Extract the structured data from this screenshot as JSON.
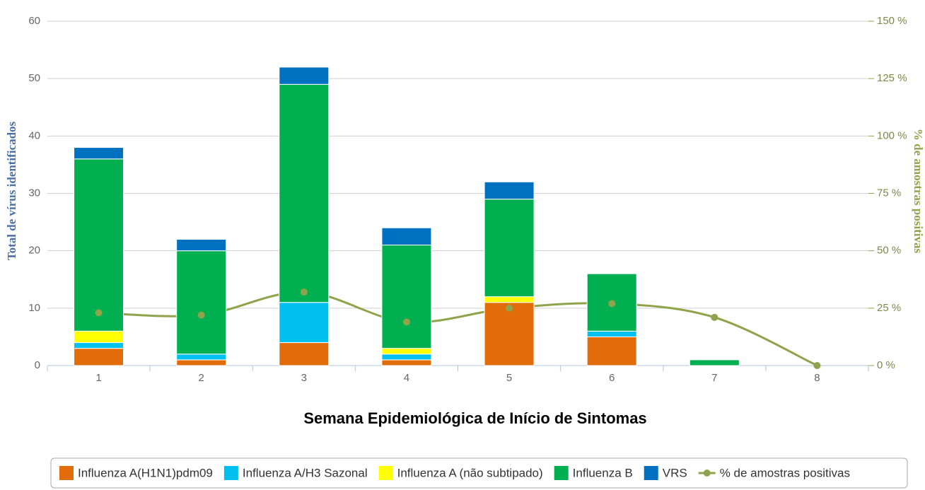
{
  "chart_data": {
    "type": "bar",
    "stacked": true,
    "x_label": "Semana Epidemiológica de Início de Sintomas",
    "y_label": "Total de vírus identificados",
    "y2_label": "% de amostras positivas",
    "categories": [
      "1",
      "2",
      "3",
      "4",
      "5",
      "6",
      "7",
      "8"
    ],
    "series": [
      {
        "name": "Influenza A(H1N1)pdm09",
        "color": "#e36c0a",
        "values": [
          3,
          1,
          4,
          1,
          11,
          5,
          0,
          0
        ]
      },
      {
        "name": "Influenza A/H3 Sazonal",
        "color": "#00c0f0",
        "values": [
          1,
          1,
          7,
          1,
          0,
          1,
          0,
          0
        ]
      },
      {
        "name": "Influenza A (não subtipado)",
        "color": "#ffff00",
        "values": [
          2,
          0,
          0,
          1,
          1,
          0,
          0,
          0
        ]
      },
      {
        "name": "Influenza B",
        "color": "#00b050",
        "values": [
          30,
          18,
          38,
          18,
          17,
          10,
          1,
          0
        ]
      },
      {
        "name": "VRS",
        "color": "#0070c0",
        "values": [
          2,
          2,
          3,
          3,
          3,
          0,
          0,
          0
        ]
      },
      {
        "name": "% de amostras positivas",
        "color": "#8ea34a",
        "type": "line",
        "axis": "y2",
        "values": [
          23,
          22,
          32,
          19,
          25,
          27,
          21,
          0
        ]
      }
    ],
    "ylim": [
      0,
      60
    ],
    "yticks": [
      0,
      10,
      20,
      30,
      40,
      50,
      60
    ],
    "y2lim": [
      0,
      150
    ],
    "y2ticks": [
      {
        "value": 0,
        "label": "0 %"
      },
      {
        "value": 25,
        "label": "25 %"
      },
      {
        "value": 50,
        "label": "50 %"
      },
      {
        "value": 75,
        "label": "75 %"
      },
      {
        "value": 100,
        "label": "100 %"
      },
      {
        "value": 125,
        "label": "125 %"
      },
      {
        "value": 150,
        "label": "150 %"
      }
    ],
    "grid": true,
    "legend": "bottom"
  }
}
